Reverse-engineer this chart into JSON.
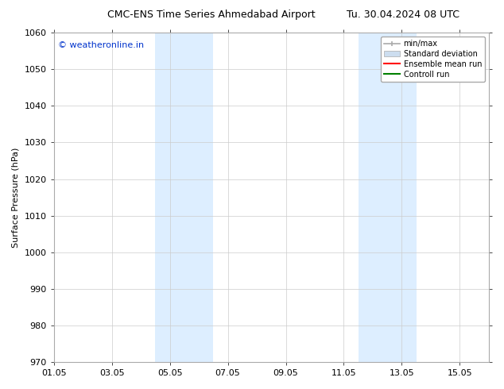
{
  "title": "CMC-ENS Time Series Ahmedabad Airport",
  "title_right": "Tu. 30.04.2024 08 UTC",
  "ylabel": "Surface Pressure (hPa)",
  "ylim": [
    970,
    1060
  ],
  "yticks": [
    970,
    980,
    990,
    1000,
    1010,
    1020,
    1030,
    1040,
    1050,
    1060
  ],
  "xlim": [
    0,
    15
  ],
  "xtick_labels": [
    "01.05",
    "03.05",
    "05.05",
    "07.05",
    "09.05",
    "11.05",
    "13.05",
    "15.05"
  ],
  "xtick_positions": [
    0,
    2,
    4,
    6,
    8,
    10,
    12,
    14
  ],
  "shade_bands": [
    {
      "xstart": 3.5,
      "xend": 5.5,
      "color": "#ddeeff"
    },
    {
      "xstart": 10.5,
      "xend": 12.5,
      "color": "#ddeeff"
    }
  ],
  "watermark": "© weatheronline.in",
  "watermark_color": "#0033cc",
  "bg_color": "#ffffff",
  "plot_bg_color": "#ffffff",
  "grid_color": "#cccccc",
  "legend_items": [
    {
      "label": "min/max",
      "color": "#aaaaaa",
      "style": "line_with_caps"
    },
    {
      "label": "Standard deviation",
      "color": "#ccddef",
      "style": "rect"
    },
    {
      "label": "Ensemble mean run",
      "color": "#ff0000",
      "style": "line"
    },
    {
      "label": "Controll run",
      "color": "#008000",
      "style": "line"
    }
  ],
  "font_size_title": 9,
  "font_size_ticks": 8,
  "font_size_legend": 7,
  "font_size_ylabel": 8,
  "font_size_watermark": 8
}
